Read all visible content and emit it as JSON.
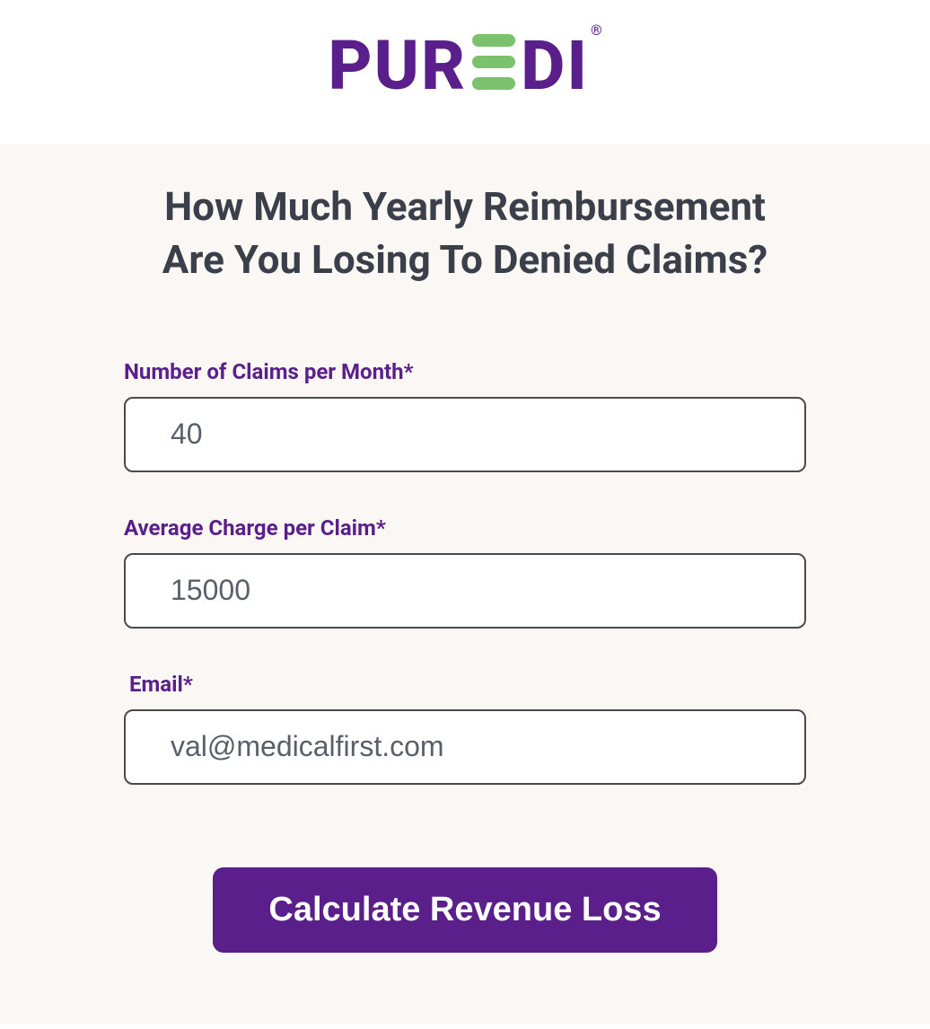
{
  "brand": {
    "name_part1": "PUR",
    "name_part2": "DI",
    "registered_mark": "®",
    "primary_color": "#5a1f8a",
    "accent_color": "#7cc26e"
  },
  "heading": "How Much Yearly Reimbursement Are You Losing To Denied Claims?",
  "form": {
    "claims": {
      "label": "Number of Claims per Month*",
      "value": "40"
    },
    "charge": {
      "label": "Average Charge per Claim*",
      "value": "15000"
    },
    "email": {
      "label": "Email*",
      "value": "val@medicalfirst.com"
    },
    "submit": {
      "label": "Calculate Revenue Loss"
    }
  },
  "colors": {
    "page_bg": "#faf7f4",
    "header_bg": "#ffffff",
    "text_heading": "#3a3f4a",
    "text_label": "#5a1f8a",
    "input_border": "#4a4a4a",
    "input_bg": "#ffffff",
    "input_text": "#5a5f68",
    "button_bg": "#5a1f8a",
    "button_text": "#ffffff"
  }
}
